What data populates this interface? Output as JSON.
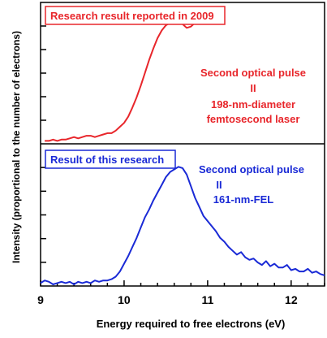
{
  "chart_data": [
    {
      "type": "line",
      "panel": "top",
      "x_range": [
        9.0,
        12.4
      ],
      "y_range": [
        0,
        1
      ],
      "grid": false,
      "color": "#e8262b",
      "legend_box": "Research result reported in 2009",
      "annotation": [
        "Second optical pulse",
        "II",
        "198-nm-diameter",
        "femtosecond laser"
      ],
      "series": [
        {
          "x": [
            9.05,
            9.1,
            9.15,
            9.2,
            9.25,
            9.3,
            9.35,
            9.4,
            9.45,
            9.5,
            9.55,
            9.6,
            9.65,
            9.7,
            9.75,
            9.8,
            9.85,
            9.9,
            9.95,
            10.0,
            10.05,
            10.1,
            10.15,
            10.2,
            10.25,
            10.3,
            10.35,
            10.4,
            10.45,
            10.5,
            10.55,
            10.6,
            10.65,
            10.7,
            10.75,
            10.8,
            10.85,
            10.9,
            10.95
          ],
          "y": [
            0.01,
            0.01,
            0.02,
            0.01,
            0.02,
            0.02,
            0.03,
            0.04,
            0.03,
            0.04,
            0.05,
            0.05,
            0.04,
            0.05,
            0.06,
            0.07,
            0.07,
            0.09,
            0.12,
            0.15,
            0.2,
            0.27,
            0.35,
            0.44,
            0.54,
            0.64,
            0.73,
            0.81,
            0.87,
            0.91,
            0.93,
            0.94,
            0.95,
            0.92,
            0.89,
            0.9,
            0.93,
            0.95,
            0.97
          ]
        }
      ]
    },
    {
      "type": "line",
      "panel": "bottom",
      "x_range": [
        9.0,
        12.4
      ],
      "y_range": [
        0,
        1
      ],
      "grid": false,
      "color": "#1a2ad6",
      "legend_box": "Result of this research",
      "annotation": [
        "Second optical pulse",
        "II",
        "161-nm-FEL"
      ],
      "xlabel": "Energy required to free electrons (eV)",
      "xticks": [
        9,
        10,
        11,
        12
      ],
      "series": [
        {
          "x": [
            9.0,
            9.05,
            9.1,
            9.15,
            9.2,
            9.25,
            9.3,
            9.35,
            9.4,
            9.45,
            9.5,
            9.55,
            9.6,
            9.65,
            9.7,
            9.75,
            9.8,
            9.85,
            9.9,
            9.95,
            10.0,
            10.05,
            10.1,
            10.15,
            10.2,
            10.25,
            10.3,
            10.35,
            10.4,
            10.45,
            10.5,
            10.55,
            10.6,
            10.65,
            10.7,
            10.75,
            10.8,
            10.85,
            10.9,
            10.95,
            11.0,
            11.05,
            11.1,
            11.15,
            11.2,
            11.25,
            11.3,
            11.35,
            11.4,
            11.45,
            11.5,
            11.55,
            11.6,
            11.65,
            11.7,
            11.75,
            11.8,
            11.85,
            11.9,
            11.95,
            12.0,
            12.05,
            12.1,
            12.15,
            12.2,
            12.25,
            12.3,
            12.35,
            12.4
          ],
          "y": [
            0.01,
            0.03,
            0.02,
            0.0,
            0.01,
            0.02,
            0.01,
            0.02,
            0.0,
            0.02,
            0.01,
            0.02,
            0.01,
            0.03,
            0.02,
            0.03,
            0.03,
            0.04,
            0.06,
            0.1,
            0.16,
            0.22,
            0.29,
            0.36,
            0.44,
            0.52,
            0.58,
            0.65,
            0.71,
            0.77,
            0.83,
            0.87,
            0.89,
            0.91,
            0.9,
            0.85,
            0.76,
            0.67,
            0.6,
            0.53,
            0.49,
            0.45,
            0.41,
            0.36,
            0.33,
            0.29,
            0.26,
            0.23,
            0.25,
            0.21,
            0.19,
            0.2,
            0.17,
            0.15,
            0.18,
            0.14,
            0.16,
            0.13,
            0.13,
            0.15,
            0.11,
            0.12,
            0.1,
            0.1,
            0.12,
            0.09,
            0.1,
            0.08,
            0.07
          ]
        }
      ]
    }
  ],
  "axes": {
    "ylabel": "Intensity (proportional to the number of electrons)"
  }
}
